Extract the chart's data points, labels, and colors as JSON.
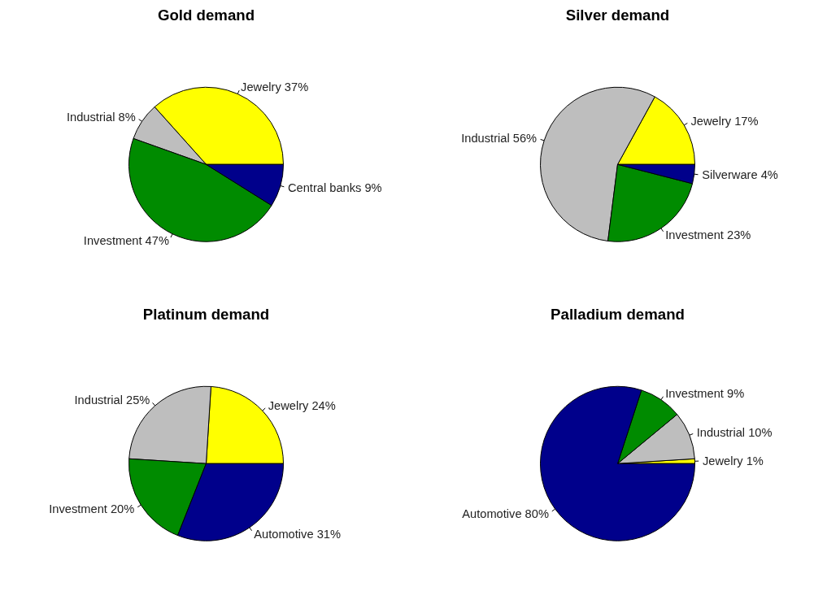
{
  "chart_data": [
    {
      "type": "pie",
      "title": "Gold demand",
      "categories": [
        "Jewelry",
        "Industrial",
        "Investment",
        "Central banks"
      ],
      "values": [
        37,
        8,
        47,
        9
      ],
      "value_labels": [
        "37%",
        "8%",
        "47%",
        "9%"
      ],
      "colors": [
        "#ffff00",
        "#bebebe",
        "#008b00",
        "#00008b"
      ]
    },
    {
      "type": "pie",
      "title": "Silver demand",
      "categories": [
        "Jewelry",
        "Industrial",
        "Investment",
        "Silverware"
      ],
      "values": [
        17,
        56,
        23,
        4
      ],
      "value_labels": [
        "17%",
        "56%",
        "23%",
        "4%"
      ],
      "colors": [
        "#ffff00",
        "#bebebe",
        "#008b00",
        "#00008b"
      ]
    },
    {
      "type": "pie",
      "title": "Platinum demand",
      "categories": [
        "Jewelry",
        "Industrial",
        "Investment",
        "Automotive"
      ],
      "values": [
        24,
        25,
        20,
        31
      ],
      "value_labels": [
        "24%",
        "25%",
        "20%",
        "31%"
      ],
      "colors": [
        "#ffff00",
        "#bebebe",
        "#008b00",
        "#00008b"
      ]
    },
    {
      "type": "pie",
      "title": "Palladium demand",
      "categories": [
        "Jewelry",
        "Industrial",
        "Investment",
        "Automotive"
      ],
      "values": [
        1,
        10,
        9,
        80
      ],
      "value_labels": [
        "1%",
        "10%",
        "9%",
        "80%"
      ],
      "colors": [
        "#ffff00",
        "#bebebe",
        "#008b00",
        "#00008b"
      ]
    }
  ]
}
